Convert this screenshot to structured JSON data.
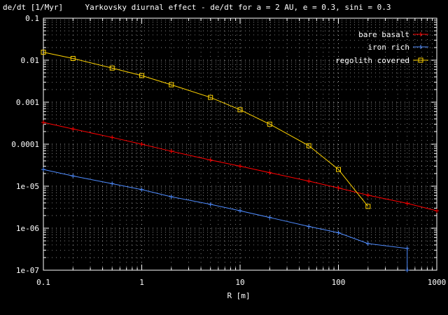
{
  "chart_data": {
    "type": "line",
    "title": "Yarkovsky diurnal effect - de/dt for a = 2 AU, e = 0.3, sini = 0.3",
    "ylabel": "de/dt [1/Myr]",
    "xlabel": "R [m]",
    "xscale": "log",
    "yscale": "log",
    "xlim": [
      0.1,
      1000
    ],
    "ylim": [
      1e-07,
      0.1
    ],
    "grid": true,
    "legend_position": "top-right",
    "x_ticks": [
      {
        "value": 0.1,
        "label": "0.1"
      },
      {
        "value": 1,
        "label": "1"
      },
      {
        "value": 10,
        "label": "10"
      },
      {
        "value": 100,
        "label": "100"
      },
      {
        "value": 1000,
        "label": "1000"
      }
    ],
    "y_ticks": [
      {
        "value": 0.1,
        "label": "0.1"
      },
      {
        "value": 0.01,
        "label": "0.01"
      },
      {
        "value": 0.001,
        "label": "0.001"
      },
      {
        "value": 0.0001,
        "label": "0.0001"
      },
      {
        "value": 1e-05,
        "label": "1e-05"
      },
      {
        "value": 1e-06,
        "label": "1e-06"
      },
      {
        "value": 1e-07,
        "label": "1e-07"
      }
    ],
    "series": [
      {
        "name": "bare basalt",
        "color": "#ff0000",
        "marker": "plus",
        "x": [
          0.1,
          0.2,
          0.5,
          1,
          2,
          5,
          10,
          20,
          50,
          100,
          200,
          500,
          1000
        ],
        "y": [
          0.00033,
          0.00023,
          0.000145,
          0.0001,
          6.8e-05,
          4.2e-05,
          3e-05,
          2.1e-05,
          1.32e-05,
          9.1e-06,
          6.1e-06,
          3.9e-06,
          2.6e-06
        ]
      },
      {
        "name": "iron rich",
        "color": "#4f8cff",
        "marker": "plus",
        "x": [
          0.1,
          0.2,
          0.5,
          1,
          2,
          5,
          10,
          20,
          50,
          100,
          200,
          500,
          500
        ],
        "y": [
          2.5e-05,
          1.75e-05,
          1.15e-05,
          8.3e-06,
          5.6e-06,
          3.7e-06,
          2.6e-06,
          1.8e-06,
          1.1e-06,
          7.8e-07,
          4.3e-07,
          3.3e-07,
          1e-07
        ]
      },
      {
        "name": "regolith covered",
        "color": "#ffd300",
        "marker": "square",
        "x": [
          0.1,
          0.2,
          0.5,
          1,
          2,
          5,
          10,
          20,
          50,
          100,
          200
        ],
        "y": [
          0.0155,
          0.011,
          0.0065,
          0.0043,
          0.0026,
          0.0013,
          0.00066,
          0.0003,
          9.2e-05,
          2.5e-05,
          3.3e-06
        ]
      }
    ]
  }
}
